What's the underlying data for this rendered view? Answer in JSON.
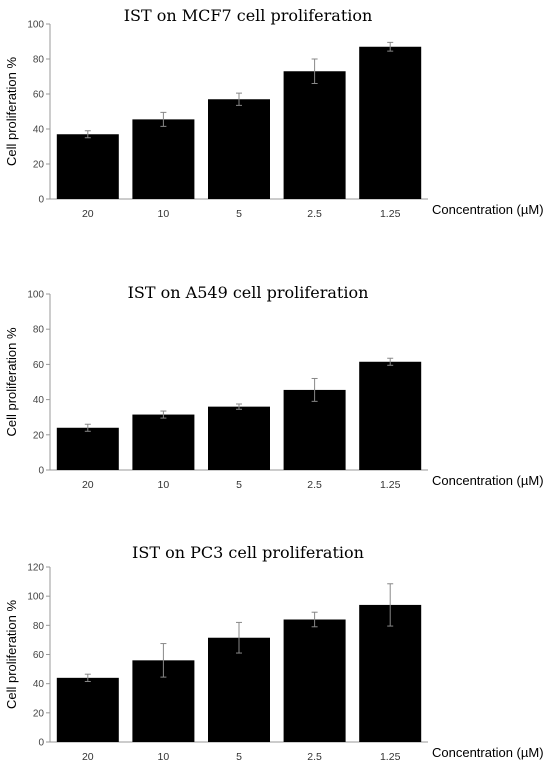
{
  "chart_data": [
    {
      "type": "bar",
      "title": "IST on MCF7 cell proliferation",
      "ylabel": "Cell proliferation %",
      "xlabel": "Concentration (µM)",
      "categories": [
        "20",
        "10",
        "5",
        "2.5",
        "1.25"
      ],
      "values": [
        37,
        45.5,
        57,
        73,
        87
      ],
      "errors": [
        2,
        4,
        3.5,
        7,
        2.5
      ],
      "ylim": [
        0,
        100
      ],
      "yticks": [
        0,
        20,
        40,
        60,
        80,
        100
      ],
      "bar_color": "#000000",
      "grid": false
    },
    {
      "type": "bar",
      "title": "IST on A549 cell proliferation",
      "ylabel": "Cell proliferation %",
      "xlabel": "Concentration (µM)",
      "categories": [
        "20",
        "10",
        "5",
        "2.5",
        "1.25"
      ],
      "values": [
        24,
        31.5,
        36,
        45.5,
        61.5
      ],
      "errors": [
        2,
        2,
        1.5,
        6.5,
        2
      ],
      "ylim": [
        0,
        100
      ],
      "yticks": [
        0,
        20,
        40,
        60,
        80,
        100
      ],
      "bar_color": "#000000",
      "grid": false
    },
    {
      "type": "bar",
      "title": "IST on PC3 cell proliferation",
      "ylabel": "Cell proliferation %",
      "xlabel": "Concentration (µM)",
      "categories": [
        "20",
        "10",
        "5",
        "2.5",
        "1.25"
      ],
      "values": [
        44,
        56,
        71.5,
        84,
        94
      ],
      "errors": [
        2.5,
        11.5,
        10.5,
        5,
        14.5
      ],
      "ylim": [
        0,
        120
      ],
      "yticks": [
        0,
        20,
        40,
        60,
        80,
        100,
        120
      ],
      "bar_color": "#000000",
      "grid": false
    }
  ]
}
